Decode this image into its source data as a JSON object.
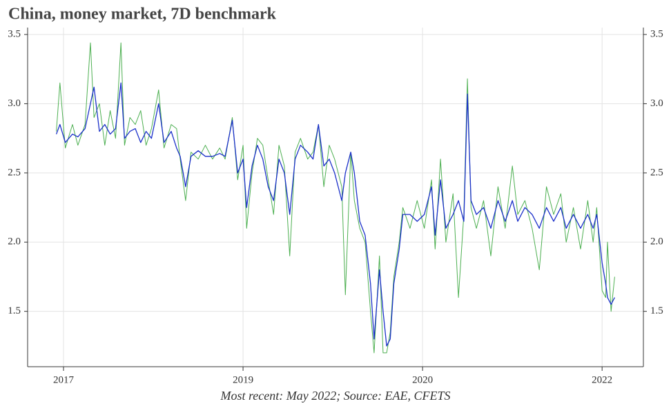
{
  "chart_data": {
    "type": "line",
    "title": "China, money market, 7D benchmark",
    "footnote": "Most recent: May 2022; Source: EAE, CFETS",
    "xlim": [
      2016.8,
      2020.23
    ],
    "xticks": [
      2017,
      {
        "value": 2018,
        "label": "2019"
      },
      {
        "value": 2019,
        "label": "2020"
      },
      {
        "value": 2020,
        "label": "2022"
      }
    ],
    "ylim": [
      1.1,
      3.55
    ],
    "yticks": [
      1.5,
      {
        "value": 2.0,
        "label": "2.0"
      },
      2.5,
      {
        "value": 3.0,
        "label": "3.0"
      },
      3.5
    ],
    "grid": true,
    "x": [
      2016.96,
      2016.98,
      2017.01,
      2017.05,
      2017.08,
      2017.12,
      2017.15,
      2017.17,
      2017.2,
      2017.23,
      2017.26,
      2017.29,
      2017.32,
      2017.34,
      2017.37,
      2017.4,
      2017.43,
      2017.46,
      2017.49,
      2017.53,
      2017.56,
      2017.6,
      2017.63,
      2017.65,
      2017.68,
      2017.71,
      2017.75,
      2017.79,
      2017.83,
      2017.87,
      2017.9,
      2017.94,
      2017.97,
      2018.0,
      2018.02,
      2018.05,
      2018.08,
      2018.11,
      2018.14,
      2018.17,
      2018.2,
      2018.23,
      2018.26,
      2018.29,
      2018.32,
      2018.36,
      2018.39,
      2018.42,
      2018.45,
      2018.48,
      2018.51,
      2018.55,
      2018.57,
      2018.6,
      2018.62,
      2018.65,
      2018.68,
      2018.71,
      2018.73,
      2018.76,
      2018.78,
      2018.8,
      2018.82,
      2018.84,
      2018.87,
      2018.89,
      2018.93,
      2018.97,
      2019.01,
      2019.05,
      2019.07,
      2019.1,
      2019.13,
      2019.17,
      2019.2,
      2019.23,
      2019.25,
      2019.27,
      2019.3,
      2019.34,
      2019.38,
      2019.42,
      2019.46,
      2019.5,
      2019.53,
      2019.57,
      2019.61,
      2019.65,
      2019.69,
      2019.73,
      2019.77,
      2019.8,
      2019.84,
      2019.88,
      2019.92,
      2019.95,
      2019.97,
      2020.0,
      2020.02,
      2020.03,
      2020.05,
      2020.07
    ],
    "series": [
      {
        "color": "#4caf50",
        "width": 1,
        "values": [
          2.8,
          3.15,
          2.68,
          2.85,
          2.7,
          2.85,
          3.44,
          2.9,
          3.0,
          2.7,
          2.95,
          2.75,
          3.44,
          2.7,
          2.9,
          2.85,
          2.95,
          2.7,
          2.82,
          3.1,
          2.68,
          2.85,
          2.82,
          2.6,
          2.3,
          2.65,
          2.6,
          2.7,
          2.6,
          2.68,
          2.6,
          2.9,
          2.45,
          2.7,
          2.1,
          2.5,
          2.75,
          2.7,
          2.45,
          2.2,
          2.7,
          2.55,
          1.9,
          2.65,
          2.75,
          2.6,
          2.65,
          2.85,
          2.4,
          2.7,
          2.6,
          2.4,
          1.62,
          2.65,
          2.3,
          2.1,
          2.0,
          1.5,
          1.2,
          1.9,
          1.2,
          1.2,
          1.35,
          1.75,
          2.0,
          2.25,
          2.1,
          2.3,
          2.1,
          2.45,
          1.95,
          2.6,
          2.0,
          2.35,
          1.6,
          2.2,
          3.18,
          2.25,
          2.1,
          2.3,
          1.9,
          2.4,
          2.1,
          2.55,
          2.2,
          2.3,
          2.1,
          1.8,
          2.4,
          2.2,
          2.35,
          2.0,
          2.25,
          1.95,
          2.3,
          2.0,
          2.25,
          1.65,
          1.6,
          2.0,
          1.5,
          1.75
        ]
      },
      {
        "color": "#1a2fc9",
        "width": 1.3,
        "values": [
          2.78,
          2.85,
          2.72,
          2.78,
          2.76,
          2.82,
          3.0,
          3.12,
          2.8,
          2.85,
          2.78,
          2.82,
          3.15,
          2.75,
          2.8,
          2.82,
          2.72,
          2.8,
          2.75,
          3.0,
          2.72,
          2.8,
          2.68,
          2.62,
          2.4,
          2.62,
          2.66,
          2.62,
          2.62,
          2.64,
          2.62,
          2.88,
          2.5,
          2.6,
          2.25,
          2.55,
          2.7,
          2.6,
          2.4,
          2.3,
          2.6,
          2.5,
          2.2,
          2.6,
          2.7,
          2.65,
          2.6,
          2.85,
          2.55,
          2.6,
          2.5,
          2.3,
          2.5,
          2.65,
          2.5,
          2.15,
          2.05,
          1.7,
          1.3,
          1.8,
          1.5,
          1.25,
          1.3,
          1.7,
          1.95,
          2.2,
          2.2,
          2.15,
          2.2,
          2.4,
          2.05,
          2.45,
          2.1,
          2.2,
          2.3,
          2.15,
          3.07,
          2.3,
          2.2,
          2.25,
          2.1,
          2.3,
          2.15,
          2.3,
          2.15,
          2.25,
          2.2,
          2.1,
          2.25,
          2.15,
          2.25,
          2.1,
          2.2,
          2.1,
          2.2,
          2.1,
          2.2,
          1.85,
          1.7,
          1.6,
          1.55,
          1.6
        ]
      }
    ]
  }
}
